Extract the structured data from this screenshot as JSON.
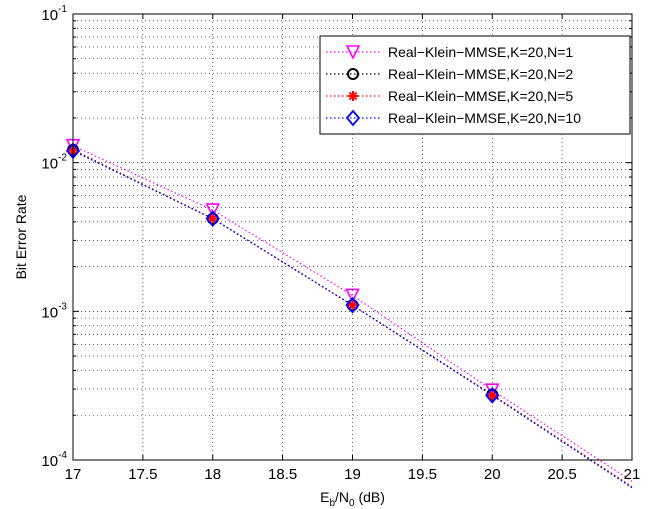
{
  "chart_data": {
    "type": "line",
    "title": "",
    "xlabel": {
      "main": "E",
      "sub1": "b",
      "mid": "/N",
      "sub2": "0",
      "tail": " (dB)"
    },
    "ylabel": "Bit Error Rate",
    "xlim": [
      17,
      21
    ],
    "ylim": [
      0.0001,
      0.1
    ],
    "yscale": "log",
    "grid": true,
    "legend_position": "top-right",
    "x_ticks": [
      "17",
      "17.5",
      "18",
      "18.5",
      "19",
      "19.5",
      "20",
      "20.5",
      "21"
    ],
    "y_ticks": [
      {
        "base": "10",
        "exp": "-4",
        "value": 0.0001
      },
      {
        "base": "10",
        "exp": "-3",
        "value": 0.001
      },
      {
        "base": "10",
        "exp": "-2",
        "value": 0.01
      },
      {
        "base": "10",
        "exp": "-1",
        "value": 0.1
      }
    ],
    "series": [
      {
        "name": "Real−Klein−MMSE,K=20,N=1",
        "color": "#ff00ff",
        "marker": "triangle-down",
        "x": [
          17,
          18,
          19,
          20,
          21
        ],
        "y": [
          0.013,
          0.0048,
          0.00128,
          0.000295,
          7.2e-05
        ],
        "markers_at": [
          17,
          18,
          19,
          20
        ]
      },
      {
        "name": "Real−Klein−MMSE,K=20,N=2",
        "color": "#000000",
        "marker": "circle",
        "x": [
          17,
          18,
          19,
          20,
          21
        ],
        "y": [
          0.0122,
          0.0042,
          0.0011,
          0.000275,
          6.6e-05
        ],
        "markers_at": [
          17,
          18,
          19,
          20
        ]
      },
      {
        "name": "Real−Klein−MMSE,K=20,N=5",
        "color": "#ff0000",
        "marker": "asterisk",
        "x": [
          17,
          18,
          19,
          20,
          21
        ],
        "y": [
          0.0121,
          0.0042,
          0.0011,
          0.000273,
          6.6e-05
        ],
        "markers_at": [
          17,
          18,
          19,
          20
        ]
      },
      {
        "name": "Real−Klein−MMSE,K=20,N=10",
        "color": "#0000ff",
        "marker": "diamond",
        "x": [
          17,
          18,
          19,
          20,
          21
        ],
        "y": [
          0.012,
          0.0042,
          0.0011,
          0.000272,
          6.5e-05
        ],
        "markers_at": [
          17,
          18,
          19,
          20
        ]
      }
    ]
  }
}
